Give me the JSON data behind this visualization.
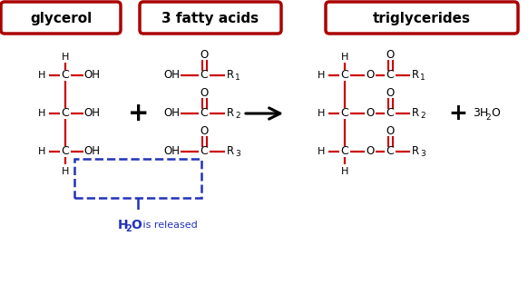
{
  "bg_color": "#ffffff",
  "title_box_color": "#aa0000",
  "bond_color": "#cc0000",
  "atom_color": "#000000",
  "dashed_color": "#2233bb",
  "label1": "glycerol",
  "label2": "3 fatty acids",
  "label3": "triglycerides",
  "figw": 5.82,
  "figh": 3.25,
  "dpi": 100
}
